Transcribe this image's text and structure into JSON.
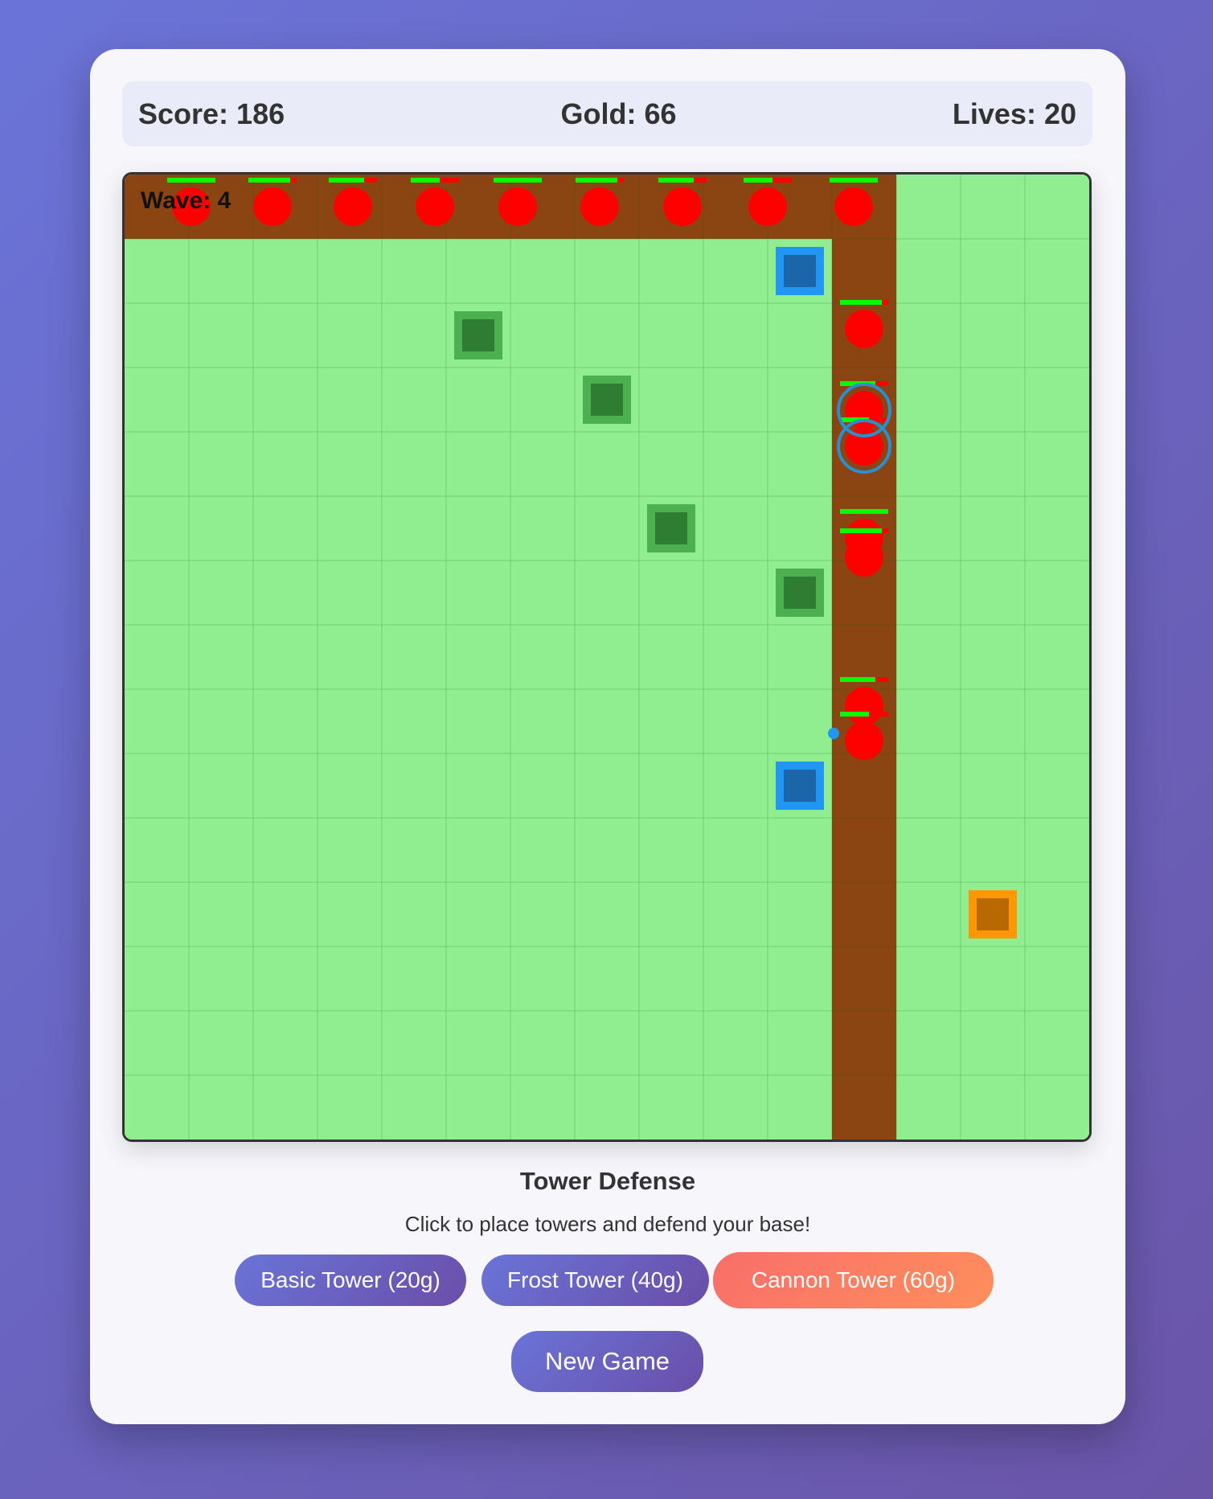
{
  "stats": {
    "score": "Score: 186",
    "gold": "Gold: 66",
    "lives": "Lives: 20"
  },
  "canvas": {
    "wave": "Wave: 4"
  },
  "title": "Tower Defense",
  "instructions": "Click to place towers and defend your base!",
  "buttons": [
    "Basic Tower (20g)",
    "Frost Tower (40g)",
    "Cannon Tower (60g)"
  ],
  "new_game": "New Game"
}
